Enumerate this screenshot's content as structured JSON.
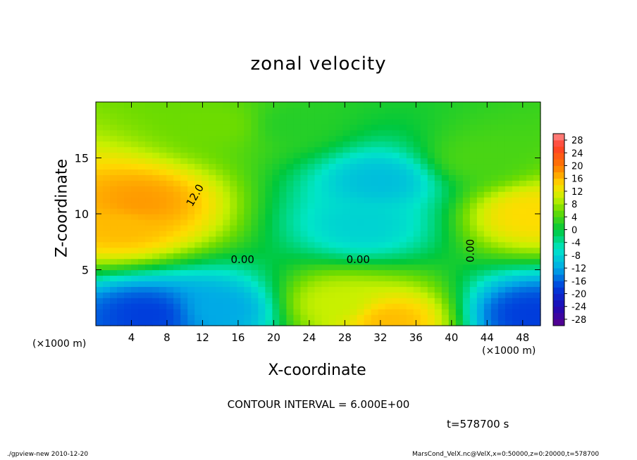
{
  "chart_data": {
    "type": "heatmap",
    "title": "zonal velocity",
    "xlabel": "X-coordinate",
    "ylabel": "Z-coordinate",
    "x_unit_label": "(×1000 m)",
    "xlim": [
      0,
      50
    ],
    "ylim": [
      0,
      20
    ],
    "x_ticks": [
      4,
      8,
      12,
      16,
      20,
      24,
      28,
      32,
      36,
      40,
      44,
      48
    ],
    "y_ticks": [
      5,
      10,
      15
    ],
    "colorbar_ticks": [
      28,
      24,
      20,
      16,
      12,
      8,
      4,
      0,
      -4,
      -8,
      -12,
      -16,
      -20,
      -24,
      -28
    ],
    "colorbar_range": [
      -30,
      30
    ],
    "contour_labels": [
      "12.0",
      "0.00",
      "0.00",
      "0.00"
    ],
    "annotation": "CONTOUR INTERVAL = 6.000E+00",
    "time_label": "t=578700 s",
    "features": [
      {
        "x": 5,
        "z": 11,
        "value": 18
      },
      {
        "x": 3,
        "z": 9,
        "value": 16
      },
      {
        "x": 32,
        "z": 13,
        "value": -10
      },
      {
        "x": 30,
        "z": 9,
        "value": -8
      },
      {
        "x": 49,
        "z": 10,
        "value": 14
      },
      {
        "x": 33,
        "z": 0.5,
        "value": 16
      },
      {
        "x": 27,
        "z": 2,
        "value": 10
      },
      {
        "x": 6,
        "z": 1,
        "value": -18
      },
      {
        "x": 49,
        "z": 1,
        "value": -18
      },
      {
        "x": 14,
        "z": 1.5,
        "value": -12
      },
      {
        "x": 22,
        "z": 18,
        "value": 2
      },
      {
        "x": 14,
        "z": 18,
        "value": 6
      },
      {
        "x": 43,
        "z": 15,
        "value": 4
      }
    ]
  },
  "footer": {
    "left": "./gpview-new  2010-12-20",
    "right": "MarsCond_VelX.nc@VelX,x=0:50000,z=0:20000,t=578700"
  }
}
